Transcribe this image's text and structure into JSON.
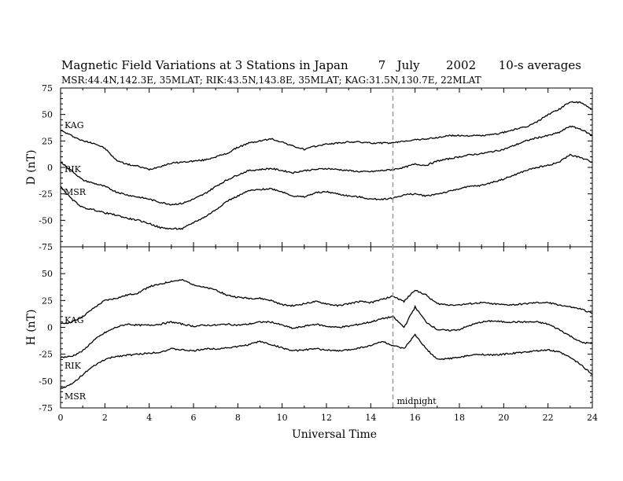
{
  "chart_data": [
    {
      "type": "line",
      "title": "Magnetic Field Variations at 3 Stations in Japan        7   July       2002      10-s averages",
      "subtitle": "MSR:44.4N,142.3E, 35MLAT;  RIK:43.5N,143.8E, 35MLAT;  KAG:31.5N,130.7E, 22MLAT",
      "ylabel": "D (nT)",
      "xlabel": "",
      "ylim": [
        -75,
        75
      ],
      "xlim": [
        0,
        24
      ],
      "yticks": [
        "75",
        "50",
        "25",
        "0",
        "-25",
        "-50",
        "-75"
      ],
      "series": [
        {
          "name": "KAG",
          "x": [
            0,
            0.5,
            1,
            1.5,
            2,
            2.5,
            3,
            3.5,
            4,
            4.5,
            5,
            5.5,
            6,
            6.5,
            7,
            7.5,
            8,
            8.5,
            9,
            9.5,
            10,
            10.5,
            11,
            11.5,
            12,
            12.5,
            13,
            13.5,
            14,
            14.5,
            15,
            15.5,
            16,
            16.5,
            17,
            17.5,
            18,
            18.5,
            19,
            19.5,
            20,
            20.5,
            21,
            21.5,
            22,
            22.5,
            23,
            23.5,
            24
          ],
          "values": [
            35,
            30,
            25,
            23,
            18,
            7,
            3,
            1,
            -2,
            1,
            4,
            5,
            6,
            7,
            10,
            13,
            19,
            23,
            25,
            27,
            24,
            20,
            17,
            20,
            22,
            23,
            24,
            24,
            23,
            23,
            23,
            25,
            26,
            27,
            28,
            30,
            30,
            30,
            30,
            31,
            33,
            36,
            38,
            43,
            50,
            55,
            62,
            61,
            55
          ]
        },
        {
          "name": "RIK",
          "x": [
            0,
            0.5,
            1,
            1.5,
            2,
            2.5,
            3,
            3.5,
            4,
            4.5,
            5,
            5.5,
            6,
            6.5,
            7,
            7.5,
            8,
            8.5,
            9,
            9.5,
            10,
            10.5,
            11,
            11.5,
            12,
            12.5,
            13,
            13.5,
            14,
            14.5,
            15,
            15.5,
            16,
            16.5,
            17,
            17.5,
            18,
            18.5,
            19,
            19.5,
            20,
            20.5,
            21,
            21.5,
            22,
            22.5,
            23,
            23.5,
            24
          ],
          "values": [
            5,
            -3,
            -12,
            -15,
            -18,
            -23,
            -26,
            -28,
            -30,
            -33,
            -35,
            -34,
            -30,
            -25,
            -18,
            -12,
            -7,
            -3,
            -2,
            -1,
            -3,
            -5,
            -3,
            -2,
            -1,
            -2,
            -3,
            -4,
            -4,
            -3,
            -2,
            0,
            3,
            2,
            6,
            8,
            10,
            12,
            13,
            15,
            17,
            21,
            25,
            28,
            30,
            33,
            39,
            36,
            30
          ]
        },
        {
          "name": "MSR",
          "x": [
            0,
            0.5,
            1,
            1.5,
            2,
            2.5,
            3,
            3.5,
            4,
            4.5,
            5,
            5.5,
            6,
            6.5,
            7,
            7.5,
            8,
            8.5,
            9,
            9.5,
            10,
            10.5,
            11,
            11.5,
            12,
            12.5,
            13,
            13.5,
            14,
            14.5,
            15,
            15.5,
            16,
            16.5,
            17,
            17.5,
            18,
            18.5,
            19,
            19.5,
            20,
            20.5,
            21,
            21.5,
            22,
            22.5,
            23,
            23.5,
            24
          ],
          "values": [
            -18,
            -30,
            -38,
            -40,
            -43,
            -45,
            -48,
            -50,
            -53,
            -57,
            -58,
            -58,
            -52,
            -47,
            -40,
            -32,
            -27,
            -22,
            -21,
            -20,
            -23,
            -27,
            -28,
            -24,
            -23,
            -25,
            -27,
            -28,
            -30,
            -30,
            -29,
            -26,
            -25,
            -27,
            -25,
            -23,
            -20,
            -18,
            -17,
            -14,
            -11,
            -7,
            -3,
            0,
            2,
            5,
            12,
            9,
            5
          ]
        }
      ]
    },
    {
      "type": "line",
      "title": "",
      "ylabel": "H (nT)",
      "xlabel": "Universal Time",
      "ylim": [
        -75,
        75
      ],
      "xlim": [
        0,
        24
      ],
      "yticks": [
        "",
        "50",
        "25",
        "0",
        "-25",
        "-50",
        "-75"
      ],
      "xticks": [
        "0",
        "2",
        "4",
        "6",
        "8",
        "10",
        "12",
        "14",
        "16",
        "18",
        "20",
        "22",
        "24"
      ],
      "series": [
        {
          "name": "KAG",
          "x": [
            0,
            0.5,
            1,
            1.5,
            2,
            2.5,
            3,
            3.5,
            4,
            4.5,
            5,
            5.5,
            6,
            6.5,
            7,
            7.5,
            8,
            8.5,
            9,
            9.5,
            10,
            10.5,
            11,
            11.5,
            12,
            12.5,
            13,
            13.5,
            14,
            14.5,
            15,
            15.5,
            16,
            16.5,
            17,
            17.5,
            18,
            18.5,
            19,
            19.5,
            20,
            20.5,
            21,
            21.5,
            22,
            22.5,
            23,
            23.5,
            24
          ],
          "values": [
            3,
            5,
            10,
            18,
            25,
            27,
            30,
            32,
            38,
            40,
            43,
            44,
            40,
            37,
            35,
            30,
            28,
            27,
            27,
            25,
            21,
            20,
            22,
            24,
            22,
            20,
            22,
            24,
            23,
            26,
            29,
            24,
            35,
            30,
            22,
            21,
            21,
            22,
            23,
            22,
            21,
            21,
            22,
            23,
            23,
            21,
            19,
            17,
            13
          ]
        },
        {
          "name": "RIK",
          "x": [
            0,
            0.5,
            1,
            1.5,
            2,
            2.5,
            3,
            3.5,
            4,
            4.5,
            5,
            5.5,
            6,
            6.5,
            7,
            7.5,
            8,
            8.5,
            9,
            9.5,
            10,
            10.5,
            11,
            11.5,
            12,
            12.5,
            13,
            13.5,
            14,
            14.5,
            15,
            15.5,
            16,
            16.5,
            17,
            17.5,
            18,
            18.5,
            19,
            19.5,
            20,
            20.5,
            21,
            21.5,
            22,
            22.5,
            23,
            23.5,
            24
          ],
          "values": [
            -28,
            -27,
            -22,
            -12,
            -5,
            0,
            3,
            2,
            2,
            3,
            5,
            3,
            1,
            2,
            2,
            3,
            2,
            3,
            5,
            5,
            2,
            -1,
            1,
            3,
            1,
            0,
            1,
            3,
            5,
            8,
            10,
            0,
            19,
            5,
            -2,
            -3,
            -2,
            2,
            5,
            6,
            5,
            5,
            5,
            5,
            3,
            -2,
            -8,
            -14,
            -15
          ]
        },
        {
          "name": "MSR",
          "x": [
            0,
            0.5,
            1,
            1.5,
            2,
            2.5,
            3,
            3.5,
            4,
            4.5,
            5,
            5.5,
            6,
            6.5,
            7,
            7.5,
            8,
            8.5,
            9,
            9.5,
            10,
            10.5,
            11,
            11.5,
            12,
            12.5,
            13,
            13.5,
            14,
            14.5,
            15,
            15.5,
            16,
            16.5,
            17,
            17.5,
            18,
            18.5,
            19,
            19.5,
            20,
            20.5,
            21,
            21.5,
            22,
            22.5,
            23,
            23.5,
            24
          ],
          "values": [
            -57,
            -53,
            -44,
            -36,
            -30,
            -27,
            -26,
            -25,
            -24,
            -23,
            -20,
            -21,
            -22,
            -20,
            -20,
            -19,
            -18,
            -16,
            -13,
            -16,
            -19,
            -22,
            -21,
            -20,
            -21,
            -22,
            -21,
            -19,
            -17,
            -13,
            -17,
            -20,
            -7,
            -20,
            -30,
            -29,
            -28,
            -26,
            -25,
            -26,
            -25,
            -24,
            -23,
            -22,
            -21,
            -23,
            -28,
            -35,
            -44
          ]
        }
      ]
    }
  ],
  "annotations": {
    "midnight_label": "midnight",
    "midnight_x": 15
  },
  "colors": {
    "line": "#000000",
    "midnight_line": "#999999"
  }
}
